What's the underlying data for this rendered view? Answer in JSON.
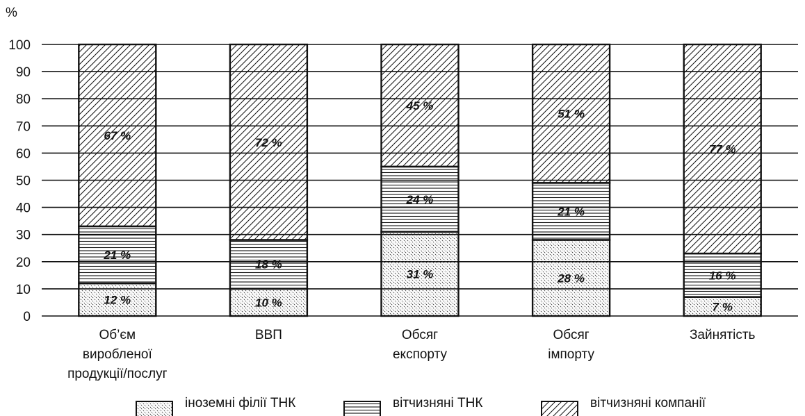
{
  "chart_data": {
    "type": "bar",
    "stacked": true,
    "ylabel": "%",
    "ylim": [
      0,
      100
    ],
    "yticks": [
      0,
      10,
      20,
      30,
      40,
      50,
      60,
      70,
      80,
      90,
      100
    ],
    "grid": true,
    "legend_position": "bottom",
    "categories": [
      [
        "Об’єм",
        "виробленої",
        "продукції/послуг"
      ],
      [
        "ВВП"
      ],
      [
        "Обсяг",
        "експорту"
      ],
      [
        "Обсяг",
        "імпорту"
      ],
      [
        "Зайнятість"
      ]
    ],
    "series": [
      {
        "name": "іноземні філії ТНК",
        "pattern": "backslash-fine",
        "values": [
          12,
          10,
          31,
          28,
          7
        ]
      },
      {
        "name": "вітчизняні ТНК",
        "pattern": "horizontal",
        "values": [
          21,
          18,
          24,
          21,
          16
        ]
      },
      {
        "name": "вітчизняні компанії",
        "pattern": "slash",
        "values": [
          67,
          72,
          45,
          51,
          77
        ]
      }
    ],
    "value_suffix": " %"
  },
  "colors": {
    "ink": "#111111",
    "background": "#ffffff"
  }
}
